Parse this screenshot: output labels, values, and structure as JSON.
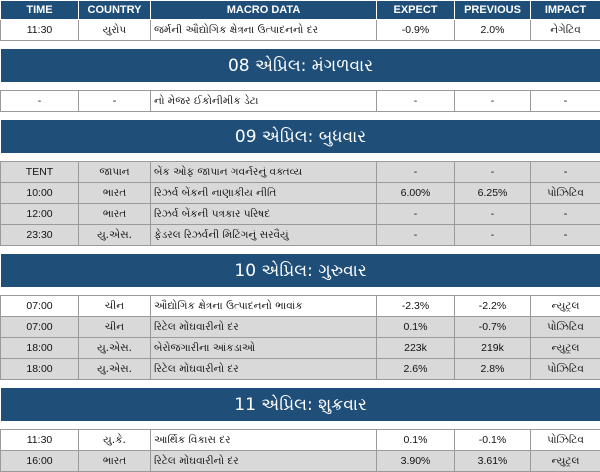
{
  "headers": [
    "TIME",
    "COUNTRY",
    "MACRO DATA",
    "EXPECT",
    "PREVIOUS",
    "IMPACT"
  ],
  "sections": [
    {
      "day": "",
      "rows": [
        {
          "time": "11:30",
          "country": "યુરોપ",
          "data": "જર્મની ઔદ્યોગિક ક્ષેત્રના ઉત્પાદનનો દર",
          "expect": "-0.9%",
          "previous": "2.0%",
          "impact": "નેગેટિવ",
          "shade": false
        }
      ]
    },
    {
      "day": "08 એપ્રિલ: મંગળવાર",
      "rows": [
        {
          "time": "-",
          "country": "-",
          "data": "નો મેજર ઈકોનીમીક ડેટા",
          "expect": "-",
          "previous": "-",
          "impact": "-",
          "shade": false
        }
      ]
    },
    {
      "day": "09 એપ્રિલ: બુધવાર",
      "rows": [
        {
          "time": "TENT",
          "country": "જાપાન",
          "data": "બેંક ઓફ જાપાન ગવર્નરનું વક્તવ્ય",
          "expect": "-",
          "previous": "-",
          "impact": "-",
          "shade": true
        },
        {
          "time": "10:00",
          "country": "ભારત",
          "data": "રિઝર્વ બેંકની નાણાકીય નીતિ",
          "expect": "6.00%",
          "previous": "6.25%",
          "impact": "પોઝિટિવ",
          "shade": true
        },
        {
          "time": "12:00",
          "country": "ભારત",
          "data": "રિઝર્વ બેંકની પત્રકાર પરિષદ",
          "expect": "-",
          "previous": "-",
          "impact": "-",
          "shade": true
        },
        {
          "time": "23:30",
          "country": "યુ.એસ.",
          "data": "ફેડરલ રિઝર્વની મિટિંગનું સરવૈયું",
          "expect": "-",
          "previous": "-",
          "impact": "-",
          "shade": true
        }
      ]
    },
    {
      "day": "10 એપ્રિલ: ગુરુવાર",
      "rows": [
        {
          "time": "07:00",
          "country": "ચીન",
          "data": "ઔદ્યોગિક ક્ષેત્રના ઉત્પાદનનો ભાવાંક",
          "expect": "-2.3%",
          "previous": "-2.2%",
          "impact": "ન્યુટ્રલ",
          "shade": false
        },
        {
          "time": "07:00",
          "country": "ચીન",
          "data": "રિટેલ મોંઘવારીનો દર",
          "expect": "0.1%",
          "previous": "-0.7%",
          "impact": "પોઝિટિવ",
          "shade": true
        },
        {
          "time": "18:00",
          "country": "યુ.એસ.",
          "data": "બેરોજગારીના આંકડાઓ",
          "expect": "223k",
          "previous": "219k",
          "impact": "ન્યુટ્રલ",
          "shade": true
        },
        {
          "time": "18:00",
          "country": "યુ.એસ.",
          "data": "રિટેલ મોંઘવારીનો દર",
          "expect": "2.6%",
          "previous": "2.8%",
          "impact": "પોઝિટિવ",
          "shade": true
        }
      ]
    },
    {
      "day": "11 એપ્રિલ: શુક્રવાર",
      "rows": [
        {
          "time": "11:30",
          "country": "યુ.કે.",
          "data": "આર્થિક વિકાસ દર",
          "expect": "0.1%",
          "previous": "-0.1%",
          "impact": "પોઝિટિવ",
          "shade": false
        },
        {
          "time": "16:00",
          "country": "ભારત",
          "data": "રિટેલ મોંઘવારીનો દર",
          "expect": "3.90%",
          "previous": "3.61%",
          "impact": "ન્યુટ્રલ",
          "shade": true
        }
      ]
    }
  ]
}
